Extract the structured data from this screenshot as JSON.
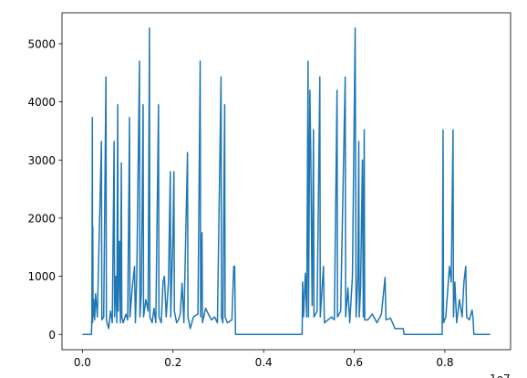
{
  "chart_data": {
    "type": "line",
    "x_offset_label": "1e7",
    "color": "#1f77b4",
    "x": [
      0,
      100000,
      200000,
      210000,
      220000,
      225000,
      230000,
      235000,
      250000,
      270000,
      290000,
      330000,
      420000,
      430000,
      470000,
      520000,
      530000,
      580000,
      620000,
      660000,
      700000,
      710000,
      740000,
      760000,
      780000,
      790000,
      820000,
      840000,
      860000,
      870000,
      900000,
      960000,
      1000000,
      1040000,
      1050000,
      1100000,
      1150000,
      1170000,
      1200000,
      1260000,
      1270000,
      1300000,
      1340000,
      1350000,
      1400000,
      1450000,
      1480000,
      1490000,
      1540000,
      1580000,
      1620000,
      1680000,
      1690000,
      1740000,
      1780000,
      1810000,
      1850000,
      1900000,
      1940000,
      1950000,
      2000000,
      2020000,
      2030000,
      2080000,
      2120000,
      2160000,
      2200000,
      2240000,
      2320000,
      2330000,
      2380000,
      2450000,
      2550000,
      2600000,
      2610000,
      2640000,
      2650000,
      2720000,
      2780000,
      2850000,
      2920000,
      2980000,
      3060000,
      3070000,
      3100000,
      3140000,
      3150000,
      3200000,
      3300000,
      3340000,
      3360000,
      3380000,
      4850000,
      4860000,
      4880000,
      4920000,
      4950000,
      4980000,
      4990000,
      5020000,
      5040000,
      5070000,
      5100000,
      5110000,
      5180000,
      5240000,
      5250000,
      5320000,
      5340000,
      5420000,
      5500000,
      5560000,
      5620000,
      5630000,
      5700000,
      5800000,
      5810000,
      5860000,
      5900000,
      5960000,
      6020000,
      6040000,
      6080000,
      6100000,
      6110000,
      6140000,
      6180000,
      6200000,
      6220000,
      6230000,
      6300000,
      6400000,
      6500000,
      6600000,
      6680000,
      6700000,
      6800000,
      6900000,
      7080000,
      7100000,
      7940000,
      7960000,
      7970000,
      8020000,
      8100000,
      8140000,
      8180000,
      8190000,
      8220000,
      8260000,
      8320000,
      8380000,
      8420000,
      8460000,
      8480000,
      8540000,
      8600000,
      8620000,
      8640000,
      9000000
    ],
    "values": [
      0,
      0,
      0,
      300,
      3730,
      200,
      1850,
      300,
      600,
      250,
      700,
      300,
      3320,
      250,
      300,
      4430,
      250,
      100,
      400,
      200,
      3320,
      300,
      1000,
      200,
      3950,
      400,
      1600,
      200,
      2950,
      300,
      200,
      350,
      250,
      3730,
      300,
      800,
      1170,
      200,
      1000,
      4700,
      300,
      700,
      3950,
      300,
      600,
      400,
      5270,
      300,
      200,
      450,
      200,
      3950,
      300,
      200,
      900,
      1000,
      300,
      900,
      2800,
      300,
      1750,
      2800,
      400,
      200,
      250,
      350,
      880,
      200,
      3130,
      300,
      100,
      300,
      350,
      4700,
      300,
      1750,
      200,
      450,
      350,
      250,
      300,
      200,
      4430,
      300,
      200,
      3950,
      300,
      200,
      250,
      1170,
      1170,
      0,
      0,
      900,
      300,
      1050,
      300,
      4700,
      300,
      4200,
      3130,
      500,
      3520,
      300,
      400,
      4430,
      300,
      1170,
      200,
      250,
      300,
      250,
      4200,
      300,
      400,
      4430,
      300,
      800,
      200,
      1000,
      5270,
      300,
      1000,
      3320,
      300,
      800,
      3000,
      300,
      3520,
      250,
      250,
      350,
      200,
      350,
      980,
      250,
      280,
      100,
      100,
      0,
      0,
      3520,
      200,
      300,
      1170,
      900,
      3520,
      300,
      900,
      200,
      600,
      300,
      900,
      1170,
      300,
      250,
      420,
      300,
      0,
      0
    ],
    "xlim": [
      -450000,
      9450000
    ],
    "ylim": [
      -263,
      5533
    ],
    "xticks": [
      {
        "value": 0,
        "label": "0.0"
      },
      {
        "value": 2000000,
        "label": "0.2"
      },
      {
        "value": 4000000,
        "label": "0.4"
      },
      {
        "value": 6000000,
        "label": "0.6"
      },
      {
        "value": 8000000,
        "label": "0.8"
      }
    ],
    "yticks": [
      0,
      1000,
      2000,
      3000,
      4000,
      5000
    ],
    "grid": false
  }
}
